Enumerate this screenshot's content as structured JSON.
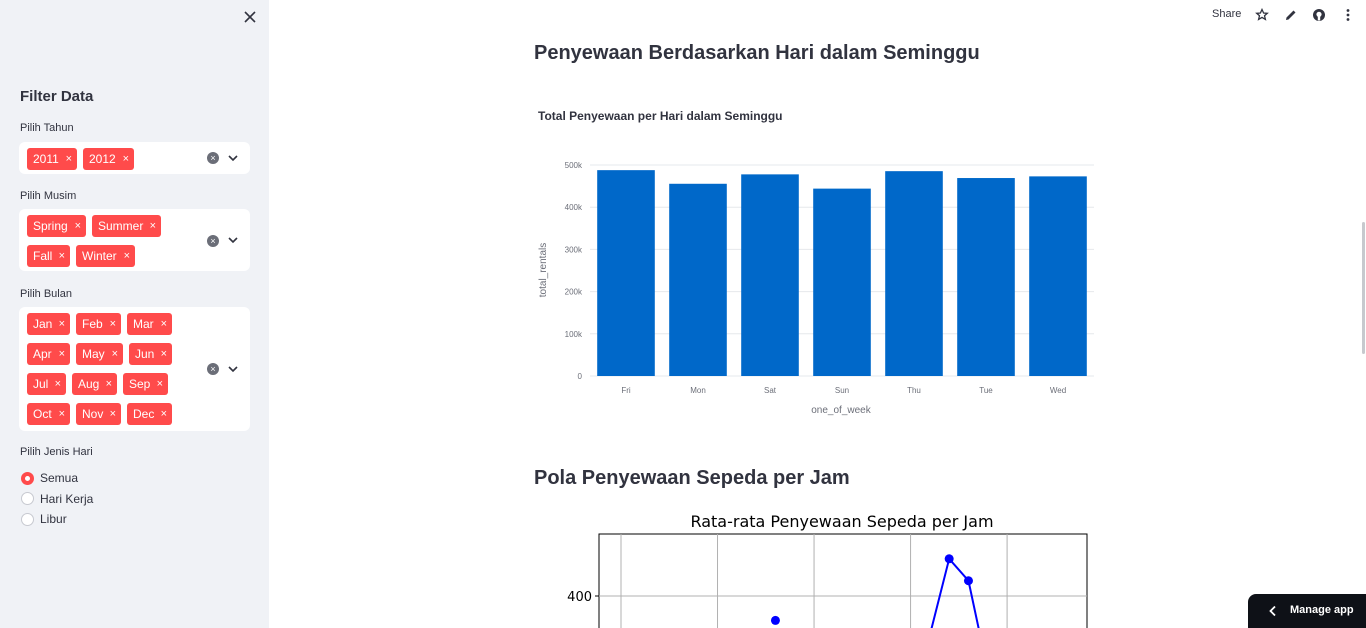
{
  "sidebar": {
    "title": "Filter Data",
    "filters": {
      "year": {
        "label": "Pilih Tahun",
        "tags": [
          "2011",
          "2012"
        ]
      },
      "season": {
        "label": "Pilih Musim",
        "tags": [
          "Spring",
          "Summer",
          "Fall",
          "Winter"
        ]
      },
      "month": {
        "label": "Pilih Bulan",
        "tags": [
          "Jan",
          "Feb",
          "Mar",
          "Apr",
          "May",
          "Jun",
          "Jul",
          "Aug",
          "Sep",
          "Oct",
          "Nov",
          "Dec"
        ]
      }
    },
    "day_type": {
      "label": "Pilih Jenis Hari",
      "options": [
        "Semua",
        "Hari Kerja",
        "Libur"
      ],
      "selected": "Semua"
    },
    "remove_glyph": "×"
  },
  "header": {
    "share_label": "Share",
    "icons": [
      "star-icon",
      "edit-icon",
      "github-icon",
      "more-icon"
    ]
  },
  "main": {
    "section1_title": "Penyewaan Berdasarkan Hari dalam Seminggu",
    "section2_title": "Pola Penyewaan Sepeda per Jam"
  },
  "manage_app_label": "Manage app",
  "colors": {
    "accent": "#ff4b4b",
    "bar": "#0068c9",
    "line": "#0000ff",
    "sidebar_bg": "#f0f2f6"
  },
  "chart_data": [
    {
      "type": "bar",
      "title": "Total Penyewaan per Hari dalam Seminggu",
      "xlabel": "one_of_week",
      "ylabel": "total_rentals",
      "categories": [
        "Fri",
        "Mon",
        "Sat",
        "Sun",
        "Thu",
        "Tue",
        "Wed"
      ],
      "values": [
        487790,
        455503,
        477807,
        444027,
        485395,
        469109,
        473048
      ],
      "ylim": [
        0,
        500000
      ],
      "yticks": [
        0,
        100000,
        200000,
        300000,
        400000,
        500000
      ],
      "ytick_labels": [
        "0",
        "100k",
        "200k",
        "300k",
        "400k",
        "500k"
      ],
      "grid": true,
      "legend": "none"
    },
    {
      "type": "line",
      "title": "Rata-rata Penyewaan Sepeda per Jam",
      "visible_ytick_labels": [
        "400"
      ],
      "visible_yticks": [
        400
      ],
      "points": [
        {
          "x": 8,
          "y": 360
        },
        {
          "x": 17,
          "y": 461
        },
        {
          "x": 18,
          "y": 425
        }
      ],
      "grid": true
    }
  ]
}
